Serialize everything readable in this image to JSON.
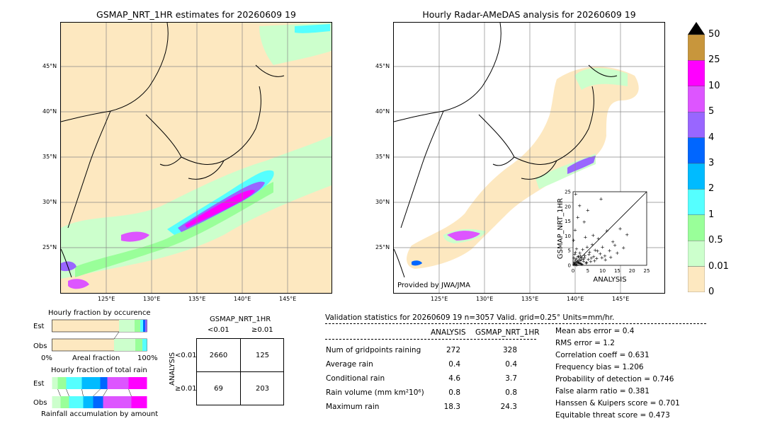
{
  "left_map": {
    "title": "GSMAP_NRT_1HR estimates for 20260609 19",
    "lat_labels": [
      "45°N",
      "40°N",
      "35°N",
      "30°N",
      "25°N"
    ],
    "lon_labels": [
      "125°E",
      "130°E",
      "135°E",
      "140°E",
      "145°E"
    ]
  },
  "right_map": {
    "title": "Hourly Radar-AMeDAS analysis for 20260609 19",
    "lat_labels": [
      "45°N",
      "40°N",
      "35°N",
      "30°N",
      "25°N"
    ],
    "lon_labels": [
      "125°E",
      "130°E",
      "135°E",
      "140°E",
      "145°E"
    ],
    "credit": "Provided by JWA/JMA"
  },
  "colorbar": {
    "ticks": [
      "50",
      "25",
      "10",
      "5",
      "4",
      "3",
      "2",
      "1",
      "0.5",
      "0.01",
      "0"
    ],
    "colors": [
      "#c8963c",
      "#ff00ff",
      "#dd55ff",
      "#9966ff",
      "#0066ff",
      "#00bbff",
      "#55ffff",
      "#99ff99",
      "#ccffcc",
      "#fde8c0"
    ]
  },
  "fraction_panel": {
    "occ_title": "Hourly fraction by occurence",
    "tot_title": "Hourly fraction of total rain",
    "est_label": "Est",
    "obs_label": "Obs",
    "axis_left": "0%",
    "axis_mid": "Areal fraction",
    "axis_right": "100%",
    "footer": "Rainfall accumulation by amount"
  },
  "contingency": {
    "title": "GSMAP_NRT_1HR",
    "col_lt": "<0.01",
    "col_ge": "≥0.01",
    "row_axis": "ANALYSIS",
    "row_lt": "<0.01",
    "row_ge": "≥0.01",
    "cells": [
      "2660",
      "125",
      "69",
      "203"
    ]
  },
  "validation": {
    "header": "Validation statistics for 20260609 19  n=3057 Valid. grid=0.25° Units=mm/hr.",
    "col_analysis": "ANALYSIS",
    "col_gsmap": "GSMAP_NRT_1HR",
    "rows": [
      {
        "label": "Num of gridpoints raining",
        "analysis": "272",
        "gsmap": "328"
      },
      {
        "label": "Average rain",
        "analysis": "0.4",
        "gsmap": "0.4"
      },
      {
        "label": "Conditional rain",
        "analysis": "4.6",
        "gsmap": "3.7"
      },
      {
        "label": "Rain volume (mm km²10⁶)",
        "analysis": "0.8",
        "gsmap": "0.8"
      },
      {
        "label": "Maximum rain",
        "analysis": "18.3",
        "gsmap": "24.3"
      }
    ],
    "scores": [
      "Mean abs error =    0.4",
      "RMS error =    1.2",
      "Correlation coeff =  0.631",
      "Frequency bias =  1.206",
      "Probability of detection =  0.746",
      "False alarm ratio =  0.381",
      "Hanssen & Kuipers score =  0.701",
      "Equitable threat score =  0.473"
    ]
  },
  "chart_data": {
    "type": "scatter",
    "xlabel": "ANALYSIS",
    "ylabel": "GSMAP_NRT_1HR",
    "xlim": [
      0,
      25
    ],
    "ylim": [
      0,
      25
    ],
    "ticks": [
      "0",
      "5",
      "10",
      "15",
      "20",
      "25"
    ],
    "points": [
      [
        0.3,
        0.2
      ],
      [
        0.5,
        1.2
      ],
      [
        0.8,
        0.4
      ],
      [
        1.1,
        2.3
      ],
      [
        1.4,
        0.8
      ],
      [
        1.7,
        3.1
      ],
      [
        2.0,
        1.0
      ],
      [
        2.3,
        4.2
      ],
      [
        2.6,
        0.6
      ],
      [
        3.0,
        2.7
      ],
      [
        3.3,
        5.4
      ],
      [
        3.6,
        1.5
      ],
      [
        4.0,
        3.4
      ],
      [
        4.4,
        0.9
      ],
      [
        4.8,
        6.2
      ],
      [
        5.2,
        2.1
      ],
      [
        5.6,
        4.6
      ],
      [
        6.0,
        1.3
      ],
      [
        6.5,
        7.1
      ],
      [
        7.0,
        3.0
      ],
      [
        7.5,
        5.2
      ],
      [
        8.0,
        2.4
      ],
      [
        8.6,
        9.1
      ],
      [
        9.2,
        4.0
      ],
      [
        10.0,
        6.3
      ],
      [
        10.8,
        3.2
      ],
      [
        11.5,
        11.8
      ],
      [
        12.4,
        5.1
      ],
      [
        13.5,
        8.0
      ],
      [
        15.0,
        4.2
      ],
      [
        16.0,
        12.5
      ],
      [
        17.1,
        6.0
      ],
      [
        18.3,
        10.4
      ],
      [
        0.4,
        0.6
      ],
      [
        0.9,
        1.8
      ],
      [
        1.3,
        0.3
      ],
      [
        1.9,
        2.9
      ],
      [
        2.4,
        1.7
      ],
      [
        2.8,
        0.5
      ],
      [
        3.5,
        2.2
      ],
      [
        0.6,
        3.8
      ],
      [
        1.2,
        5.6
      ],
      [
        0.2,
        8.5
      ],
      [
        0.7,
        12.0
      ],
      [
        1.6,
        16.4
      ],
      [
        2.2,
        20.3
      ],
      [
        0.9,
        24.3
      ],
      [
        3.8,
        14.8
      ],
      [
        5.0,
        18.7
      ],
      [
        6.8,
        10.2
      ],
      [
        9.5,
        22.6
      ],
      [
        4.2,
        9.6
      ],
      [
        0.5,
        0.9
      ],
      [
        1.0,
        0.2
      ],
      [
        1.5,
        1.4
      ],
      [
        2.1,
        0.7
      ],
      [
        2.7,
        1.9
      ],
      [
        3.1,
        0.4
      ],
      [
        0.3,
        2.5
      ],
      [
        0.8,
        4.4
      ],
      [
        1.8,
        1.1
      ],
      [
        2.5,
        3.3
      ],
      [
        3.9,
        2.6
      ],
      [
        4.6,
        1.0
      ],
      [
        5.4,
        3.7
      ],
      [
        6.2,
        2.5
      ],
      [
        7.3,
        1.6
      ],
      [
        8.3,
        4.9
      ],
      [
        9.8,
        2.7
      ],
      [
        11.0,
        1.9
      ],
      [
        12.8,
        2.8
      ],
      [
        14.2,
        6.9
      ]
    ]
  }
}
